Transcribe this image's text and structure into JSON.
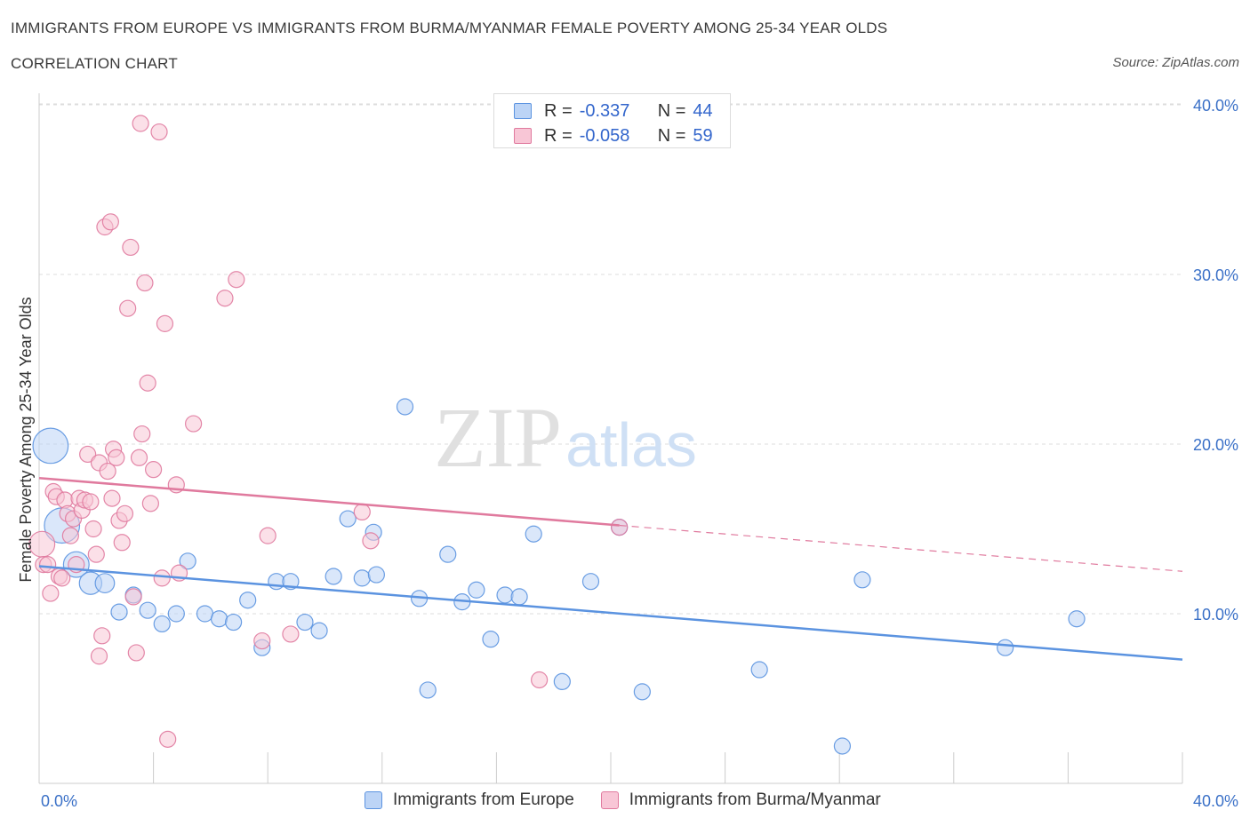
{
  "chart_data": {
    "type": "scatter",
    "title": "IMMIGRANTS FROM EUROPE VS IMMIGRANTS FROM BURMA/MYANMAR FEMALE POVERTY AMONG 25-34 YEAR OLDS",
    "subtitle": "CORRELATION CHART",
    "source": "Source: ZipAtlas.com",
    "ylabel": "Female Poverty Among 25-34 Year Olds",
    "xlabel": "",
    "xlim": [
      0,
      40
    ],
    "ylim": [
      0,
      40
    ],
    "x_tick_labels": [
      "0.0%",
      "40.0%"
    ],
    "y_ticks": [
      10,
      20,
      30,
      40
    ],
    "y_tick_labels": [
      "10.0%",
      "20.0%",
      "30.0%",
      "40.0%"
    ],
    "watermark": "ZIPatlas",
    "legend": {
      "europe": {
        "r_label": "R =",
        "r_value": "-0.337",
        "n_label": "N =",
        "n_value": "44"
      },
      "burma": {
        "r_label": "R =",
        "r_value": "-0.058",
        "n_label": "N =",
        "n_value": "59"
      }
    },
    "series": [
      {
        "name": "Immigrants from Europe",
        "color": "#5b93e0",
        "fill": "#bcd4f6",
        "trend": {
          "x0": 0,
          "y0": 12.8,
          "x1": 40,
          "y1": 7.3,
          "dashed_from": null
        },
        "points": [
          [
            0.4,
            19.9,
            2.2
          ],
          [
            0.8,
            15.2,
            2.2
          ],
          [
            1.3,
            12.9,
            1.6
          ],
          [
            1.8,
            11.8,
            1.4
          ],
          [
            2.3,
            11.8,
            1.2
          ],
          [
            2.8,
            10.1,
            1
          ],
          [
            3.3,
            11.1,
            1
          ],
          [
            3.8,
            10.2,
            1
          ],
          [
            4.3,
            9.4,
            1
          ],
          [
            4.8,
            10,
            1
          ],
          [
            5.2,
            13.1,
            1
          ],
          [
            5.8,
            10,
            1
          ],
          [
            6.3,
            9.7,
            1
          ],
          [
            6.8,
            9.5,
            1
          ],
          [
            7.3,
            10.8,
            1
          ],
          [
            7.8,
            8,
            1
          ],
          [
            8.3,
            11.9,
            1
          ],
          [
            8.8,
            11.9,
            1
          ],
          [
            9.3,
            9.5,
            1
          ],
          [
            9.8,
            9,
            1
          ],
          [
            10.3,
            12.2,
            1
          ],
          [
            10.8,
            15.6,
            1
          ],
          [
            11.3,
            12.1,
            1
          ],
          [
            11.7,
            14.8,
            1
          ],
          [
            11.8,
            12.3,
            1
          ],
          [
            12.8,
            22.2,
            1
          ],
          [
            13.3,
            10.9,
            1
          ],
          [
            13.6,
            5.5,
            1
          ],
          [
            14.3,
            13.5,
            1
          ],
          [
            14.8,
            10.7,
            1
          ],
          [
            15.3,
            11.4,
            1
          ],
          [
            15.8,
            8.5,
            1
          ],
          [
            16.3,
            11.1,
            1
          ],
          [
            16.8,
            11,
            1
          ],
          [
            17.3,
            14.7,
            1
          ],
          [
            18.3,
            6,
            1
          ],
          [
            19.3,
            11.9,
            1
          ],
          [
            20.3,
            15.1,
            1
          ],
          [
            21.1,
            5.4,
            1
          ],
          [
            25.2,
            6.7,
            1
          ],
          [
            28.1,
            2.2,
            1
          ],
          [
            28.8,
            12,
            1
          ],
          [
            33.8,
            8,
            1
          ],
          [
            36.3,
            9.7,
            1
          ]
        ]
      },
      {
        "name": "Immigrants from Burma/Myanmar",
        "color": "#e07a9e",
        "fill": "#f8c6d6",
        "trend": {
          "x0": 0,
          "y0": 18,
          "x1": 40,
          "y1": 12.5,
          "dashed_from": 20.3
        },
        "points": [
          [
            0.1,
            14.1,
            1.6
          ],
          [
            0.15,
            12.9,
            1
          ],
          [
            0.3,
            12.9,
            1
          ],
          [
            0.4,
            11.2,
            1
          ],
          [
            0.5,
            17.2,
            1
          ],
          [
            0.6,
            16.9,
            1
          ],
          [
            0.7,
            12.2,
            1
          ],
          [
            0.8,
            12.1,
            1
          ],
          [
            0.9,
            16.7,
            1
          ],
          [
            1,
            15.9,
            1
          ],
          [
            1.1,
            14.6,
            1
          ],
          [
            1.2,
            15.6,
            1
          ],
          [
            1.3,
            12.9,
            1
          ],
          [
            1.4,
            16.8,
            1
          ],
          [
            1.5,
            16.1,
            1
          ],
          [
            1.6,
            16.7,
            1
          ],
          [
            1.7,
            19.4,
            1
          ],
          [
            1.8,
            16.6,
            1
          ],
          [
            1.9,
            15,
            1
          ],
          [
            2,
            13.5,
            1
          ],
          [
            2.1,
            18.9,
            1
          ],
          [
            2.2,
            8.7,
            1
          ],
          [
            2.1,
            7.5,
            1
          ],
          [
            2.3,
            32.8,
            1
          ],
          [
            2.4,
            18.4,
            1
          ],
          [
            2.5,
            33.1,
            1
          ],
          [
            2.55,
            16.8,
            1
          ],
          [
            2.6,
            19.7,
            1
          ],
          [
            2.7,
            19.2,
            1
          ],
          [
            2.8,
            15.5,
            1
          ],
          [
            2.9,
            14.2,
            1
          ],
          [
            3,
            15.9,
            1
          ],
          [
            3.1,
            28,
            1
          ],
          [
            3.2,
            31.6,
            1
          ],
          [
            3.3,
            11,
            1
          ],
          [
            3.4,
            7.7,
            1
          ],
          [
            3.5,
            19.2,
            1
          ],
          [
            3.6,
            20.6,
            1
          ],
          [
            3.55,
            38.9,
            1
          ],
          [
            3.7,
            29.5,
            1
          ],
          [
            3.8,
            23.6,
            1
          ],
          [
            3.9,
            16.5,
            1
          ],
          [
            4,
            18.5,
            1
          ],
          [
            4.2,
            38.4,
            1
          ],
          [
            4.3,
            12.1,
            1
          ],
          [
            4.4,
            27.1,
            1
          ],
          [
            4.5,
            2.6,
            1
          ],
          [
            4.8,
            17.6,
            1
          ],
          [
            4.9,
            12.4,
            1
          ],
          [
            5.4,
            21.2,
            1
          ],
          [
            6.5,
            28.6,
            1
          ],
          [
            6.9,
            29.7,
            1
          ],
          [
            7.8,
            8.4,
            1
          ],
          [
            8,
            14.6,
            1
          ],
          [
            8.8,
            8.8,
            1
          ],
          [
            11.3,
            16,
            1
          ],
          [
            11.6,
            14.3,
            1
          ],
          [
            17.5,
            6.1,
            1
          ],
          [
            20.3,
            15.1,
            1
          ]
        ]
      }
    ]
  }
}
